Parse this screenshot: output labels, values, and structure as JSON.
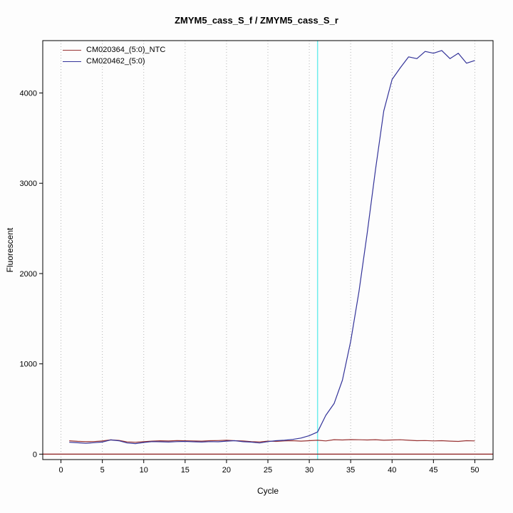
{
  "chart_data": {
    "type": "line",
    "title": "ZMYM5_cass_S_f / ZMYM5_cass_S_r",
    "xlabel": "Cycle",
    "ylabel": "Fluorescent",
    "xlim": [
      -2.2,
      52.2
    ],
    "ylim": [
      -60,
      4580
    ],
    "x_ticks": [
      0,
      5,
      10,
      15,
      20,
      25,
      30,
      35,
      40,
      45,
      50
    ],
    "y_ticks": [
      0,
      1000,
      2000,
      3000,
      4000
    ],
    "grid": {
      "vertical_dotted_at_x_ticks": true,
      "color": "#b3b3b3",
      "horizontal": false
    },
    "threshold_vline": {
      "x": 31,
      "color": "#6feeee"
    },
    "baseline_hline": {
      "y": 0,
      "color": "#8b1a1a"
    },
    "legend_position": "top-left",
    "plot_border_color": "#000000",
    "background_color": "#fdfdfd",
    "x": [
      1,
      2,
      3,
      4,
      5,
      6,
      7,
      8,
      9,
      10,
      11,
      12,
      13,
      14,
      15,
      16,
      17,
      18,
      19,
      20,
      21,
      22,
      23,
      24,
      25,
      26,
      27,
      28,
      29,
      30,
      31,
      32,
      33,
      34,
      35,
      36,
      37,
      38,
      39,
      40,
      41,
      42,
      43,
      44,
      45,
      46,
      47,
      48,
      49,
      50
    ],
    "series": [
      {
        "name": "CM020364_(5:0)_NTC",
        "color": "#993333",
        "values": [
          148,
          142,
          138,
          140,
          146,
          158,
          152,
          136,
          132,
          138,
          144,
          148,
          146,
          150,
          148,
          147,
          144,
          149,
          151,
          154,
          149,
          147,
          139,
          136,
          144,
          141,
          147,
          149,
          144,
          149,
          154,
          147,
          160,
          157,
          161,
          159,
          157,
          160,
          154,
          157,
          159,
          154,
          149,
          151,
          147,
          149,
          144,
          141,
          149,
          147
        ]
      },
      {
        "name": "CM020462_(5:0)",
        "color": "#333399",
        "values": [
          132,
          126,
          120,
          127,
          134,
          158,
          148,
          124,
          117,
          129,
          139,
          137,
          134,
          139,
          141,
          137,
          134,
          139,
          137,
          144,
          149,
          138,
          133,
          124,
          139,
          149,
          154,
          163,
          178,
          205,
          245,
          430,
          560,
          820,
          1250,
          1800,
          2450,
          3150,
          3800,
          4150,
          4280,
          4400,
          4380,
          4460,
          4440,
          4470,
          4380,
          4440,
          4330,
          4360
        ]
      }
    ]
  }
}
